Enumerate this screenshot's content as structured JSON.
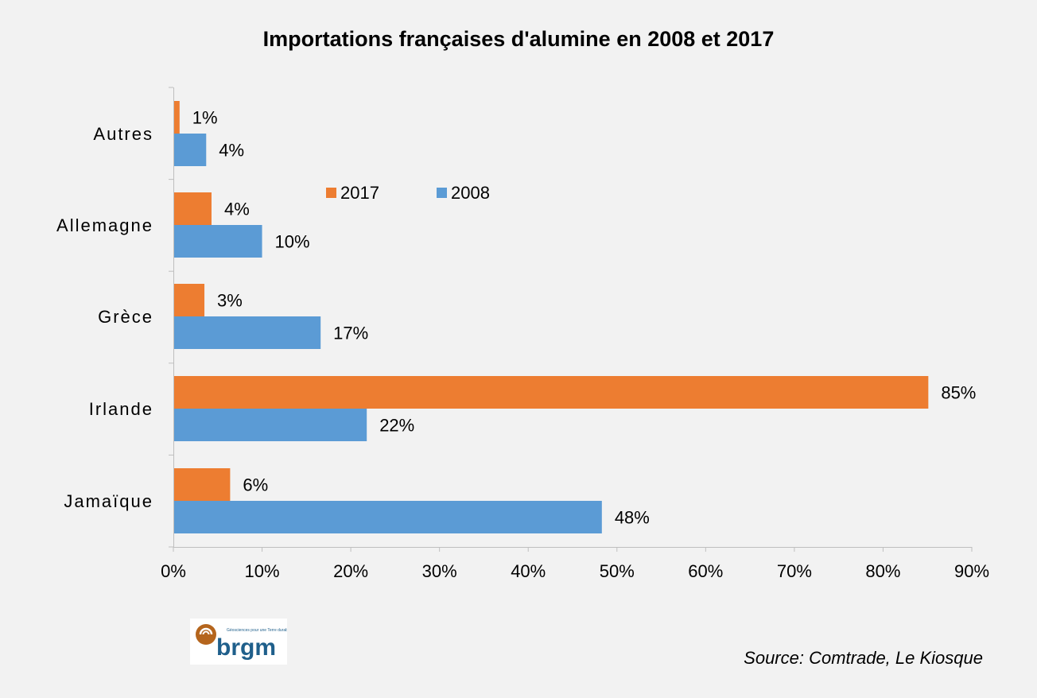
{
  "chart_data": {
    "type": "bar",
    "orientation": "horizontal",
    "title": "Importations françaises d'alumine en 2008 et 2017",
    "categories": [
      "Autres",
      "Allemagne",
      "Grèce",
      "Irlande",
      "Jamaïque"
    ],
    "series": [
      {
        "name": "2017",
        "color": "#ed7d31",
        "values": [
          0.7,
          4.3,
          3.5,
          85.1,
          6.4
        ],
        "labels": [
          "1%",
          "4%",
          "3%",
          "85%",
          "6%"
        ]
      },
      {
        "name": "2008",
        "color": "#5b9bd5",
        "values": [
          3.7,
          10.0,
          16.6,
          21.8,
          48.3
        ],
        "labels": [
          "4%",
          "10%",
          "17%",
          "22%",
          "48%"
        ]
      }
    ],
    "xlim": [
      0,
      90
    ],
    "xticks": [
      "0%",
      "10%",
      "20%",
      "30%",
      "40%",
      "50%",
      "60%",
      "70%",
      "80%",
      "90%"
    ],
    "xlabel": "",
    "ylabel": "",
    "grid": false,
    "legend_position": "top-center-inside"
  },
  "source": "Source: Comtrade, Le Kiosque",
  "logo": {
    "text": "brgm",
    "tagline": "Géosciences pour une Terre durable"
  }
}
